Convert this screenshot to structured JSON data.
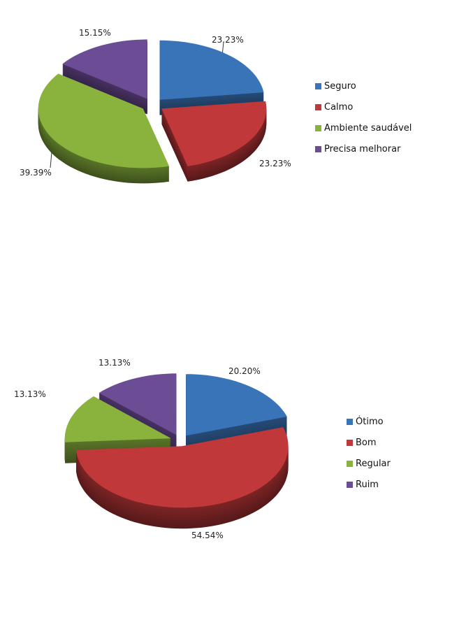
{
  "chart_data": [
    {
      "type": "pie",
      "style": "3d-exploded",
      "categories": [
        "Seguro",
        "Calmo",
        "Ambiente saudável",
        "Precisa melhorar"
      ],
      "values": [
        23.23,
        23.23,
        39.39,
        15.15
      ],
      "data_labels": [
        "23.23%",
        "23.23%",
        "39.39%",
        "15.15%"
      ],
      "colors": [
        "#3a74b8",
        "#c0383a",
        "#8ab33e",
        "#6d4c96"
      ],
      "legend": "right"
    },
    {
      "type": "pie",
      "style": "3d-exploded",
      "categories": [
        "Ótimo",
        "Bom",
        "Regular",
        "Ruim"
      ],
      "values": [
        20.2,
        54.54,
        13.13,
        13.13
      ],
      "data_labels": [
        "20.20%",
        "54.54%",
        "13.13%",
        "13.13%"
      ],
      "colors": [
        "#3a74b8",
        "#c0383a",
        "#8ab33e",
        "#6d4c96"
      ],
      "legend": "right"
    }
  ]
}
